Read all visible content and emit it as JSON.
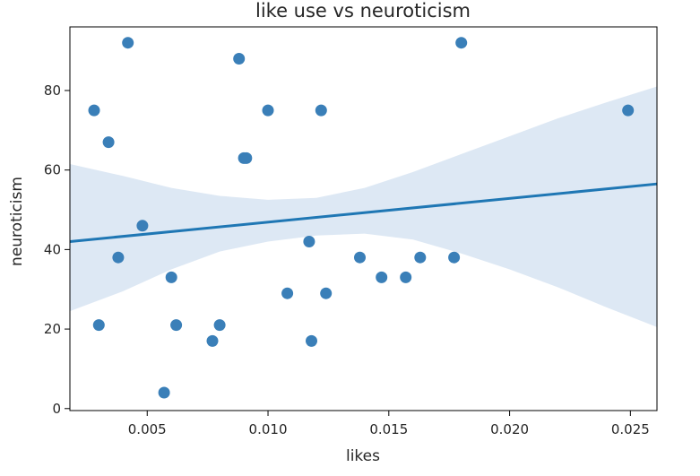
{
  "chart_data": {
    "type": "scatter",
    "title": "like use vs neuroticism",
    "xlabel": "likes",
    "ylabel": "neuroticism",
    "xlim": [
      0.0018,
      0.0261
    ],
    "ylim": [
      -0.5,
      96
    ],
    "xticks": [
      0.005,
      0.01,
      0.015,
      0.02,
      0.025
    ],
    "xtick_labels": [
      "0.005",
      "0.010",
      "0.015",
      "0.020",
      "0.025"
    ],
    "yticks": [
      0,
      20,
      40,
      60,
      80
    ],
    "ytick_labels": [
      "0",
      "20",
      "40",
      "60",
      "80"
    ],
    "grid": false,
    "legend": "none",
    "colors": {
      "points": "#3a7fb8",
      "line": "#1f77b4",
      "band": "#c6d9ec"
    },
    "series": [
      {
        "x": [
          0.0028,
          0.003,
          0.0034,
          0.0038,
          0.0042,
          0.0048,
          0.0057,
          0.006,
          0.0062,
          0.0077,
          0.008,
          0.0088,
          0.009,
          0.0091,
          0.01,
          0.0108,
          0.0117,
          0.0118,
          0.0122,
          0.0124,
          0.0138,
          0.0147,
          0.0157,
          0.0163,
          0.0177,
          0.018,
          0.0249
        ],
        "y": [
          75,
          21,
          67,
          38,
          92,
          46,
          4,
          33,
          21,
          17,
          21,
          88,
          63,
          63,
          75,
          29,
          42,
          17,
          75,
          29,
          38,
          33,
          33,
          38,
          38,
          92,
          75
        ]
      }
    ],
    "regression": {
      "x": [
        0.0018,
        0.0261
      ],
      "y": [
        42.0,
        56.5
      ]
    },
    "confidence_band": {
      "x": [
        0.0018,
        0.004,
        0.006,
        0.008,
        0.01,
        0.012,
        0.014,
        0.016,
        0.018,
        0.02,
        0.022,
        0.024,
        0.0261
      ],
      "upper": [
        61.5,
        58.5,
        55.5,
        53.5,
        52.5,
        53.0,
        55.5,
        59.5,
        64.0,
        68.5,
        73.0,
        77.0,
        81.0
      ],
      "lower": [
        24.5,
        29.5,
        35.0,
        39.5,
        42.0,
        43.5,
        44.0,
        42.5,
        39.0,
        35.0,
        30.5,
        25.5,
        20.5
      ]
    }
  }
}
